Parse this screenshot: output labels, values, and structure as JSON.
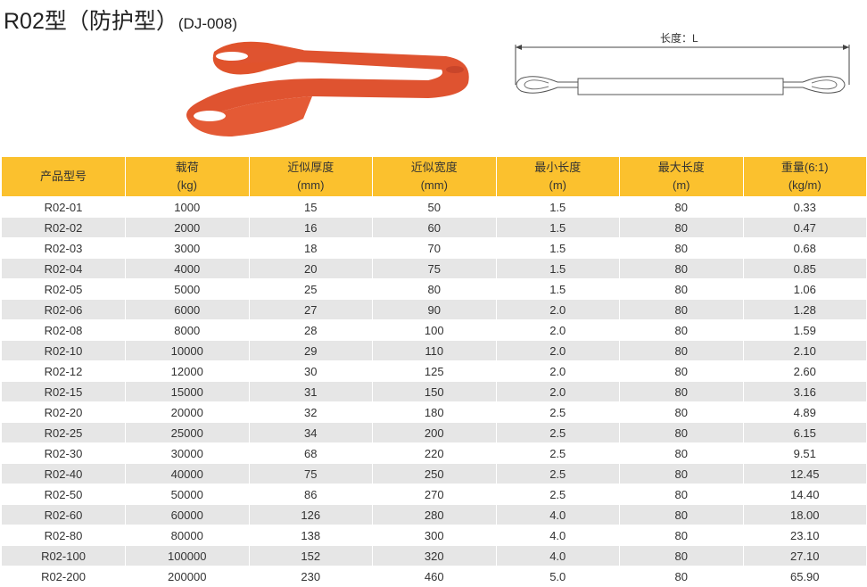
{
  "title": {
    "main": "R02型（防护型）",
    "code": "(DJ-008)"
  },
  "diagram": {
    "length_label": "长度：L"
  },
  "colors": {
    "header_bg": "#fbc12e",
    "sling": "#e0532c",
    "row_alt": "#e6e6e6"
  },
  "table": {
    "headers": [
      {
        "name": "产品型号",
        "unit": ""
      },
      {
        "name": "载荷",
        "unit": "(kg)"
      },
      {
        "name": "近似厚度",
        "unit": "(mm)"
      },
      {
        "name": "近似宽度",
        "unit": "(mm)"
      },
      {
        "name": "最小长度",
        "unit": "(m)"
      },
      {
        "name": "最大长度",
        "unit": "(m)"
      },
      {
        "name": "重量(6:1)",
        "unit": "(kg/m)"
      }
    ],
    "rows": [
      [
        "R02-01",
        "1000",
        "15",
        "50",
        "1.5",
        "80",
        "0.33"
      ],
      [
        "R02-02",
        "2000",
        "16",
        "60",
        "1.5",
        "80",
        "0.47"
      ],
      [
        "R02-03",
        "3000",
        "18",
        "70",
        "1.5",
        "80",
        "0.68"
      ],
      [
        "R02-04",
        "4000",
        "20",
        "75",
        "1.5",
        "80",
        "0.85"
      ],
      [
        "R02-05",
        "5000",
        "25",
        "80",
        "1.5",
        "80",
        "1.06"
      ],
      [
        "R02-06",
        "6000",
        "27",
        "90",
        "2.0",
        "80",
        "1.28"
      ],
      [
        "R02-08",
        "8000",
        "28",
        "100",
        "2.0",
        "80",
        "1.59"
      ],
      [
        "R02-10",
        "10000",
        "29",
        "110",
        "2.0",
        "80",
        "2.10"
      ],
      [
        "R02-12",
        "12000",
        "30",
        "125",
        "2.0",
        "80",
        "2.60"
      ],
      [
        "R02-15",
        "15000",
        "31",
        "150",
        "2.0",
        "80",
        "3.16"
      ],
      [
        "R02-20",
        "20000",
        "32",
        "180",
        "2.5",
        "80",
        "4.89"
      ],
      [
        "R02-25",
        "25000",
        "34",
        "200",
        "2.5",
        "80",
        "6.15"
      ],
      [
        "R02-30",
        "30000",
        "68",
        "220",
        "2.5",
        "80",
        "9.51"
      ],
      [
        "R02-40",
        "40000",
        "75",
        "250",
        "2.5",
        "80",
        "12.45"
      ],
      [
        "R02-50",
        "50000",
        "86",
        "270",
        "2.5",
        "80",
        "14.40"
      ],
      [
        "R02-60",
        "60000",
        "126",
        "280",
        "4.0",
        "80",
        "18.00"
      ],
      [
        "R02-80",
        "80000",
        "138",
        "300",
        "4.0",
        "80",
        "23.10"
      ],
      [
        "R02-100",
        "100000",
        "152",
        "320",
        "4.0",
        "80",
        "27.10"
      ],
      [
        "R02-200",
        "200000",
        "230",
        "460",
        "5.0",
        "80",
        "65.90"
      ]
    ]
  }
}
